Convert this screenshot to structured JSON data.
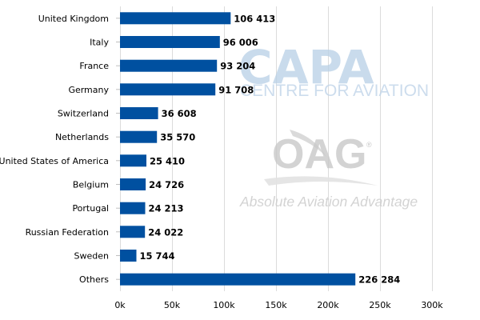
{
  "chart_data": {
    "type": "bar",
    "orientation": "horizontal",
    "title": "",
    "xlabel": "",
    "ylabel": "",
    "categories": [
      "United Kingdom",
      "Italy",
      "France",
      "Germany",
      "Switzerland",
      "Netherlands",
      "United States of America",
      "Belgium",
      "Portugal",
      "Russian Federation",
      "Sweden",
      "Others"
    ],
    "values": [
      106413,
      96006,
      93204,
      91708,
      36608,
      35570,
      25410,
      24726,
      24213,
      24022,
      15744,
      226284
    ],
    "value_labels": [
      "106 413",
      "96 006",
      "93 204",
      "91 708",
      "36 608",
      "35 570",
      "25 410",
      "24 726",
      "24 213",
      "24 022",
      "15 744",
      "226 284"
    ],
    "xlim": [
      0,
      300000
    ],
    "x_ticks": [
      0,
      50000,
      100000,
      150000,
      200000,
      250000,
      300000
    ],
    "x_tick_labels": [
      "0k",
      "50k",
      "100k",
      "150k",
      "200k",
      "250k",
      "300k"
    ],
    "grid": "vertical",
    "bar_color": "#0050a0",
    "grid_color": "#dcdcdc"
  },
  "watermarks": {
    "capa_logo": "CAPA",
    "capa_subtitle": "CENTRE FOR AVIATION",
    "oag_logo": "OAG",
    "oag_registered": "®",
    "oag_tagline": "Absolute Aviation Advantage"
  }
}
